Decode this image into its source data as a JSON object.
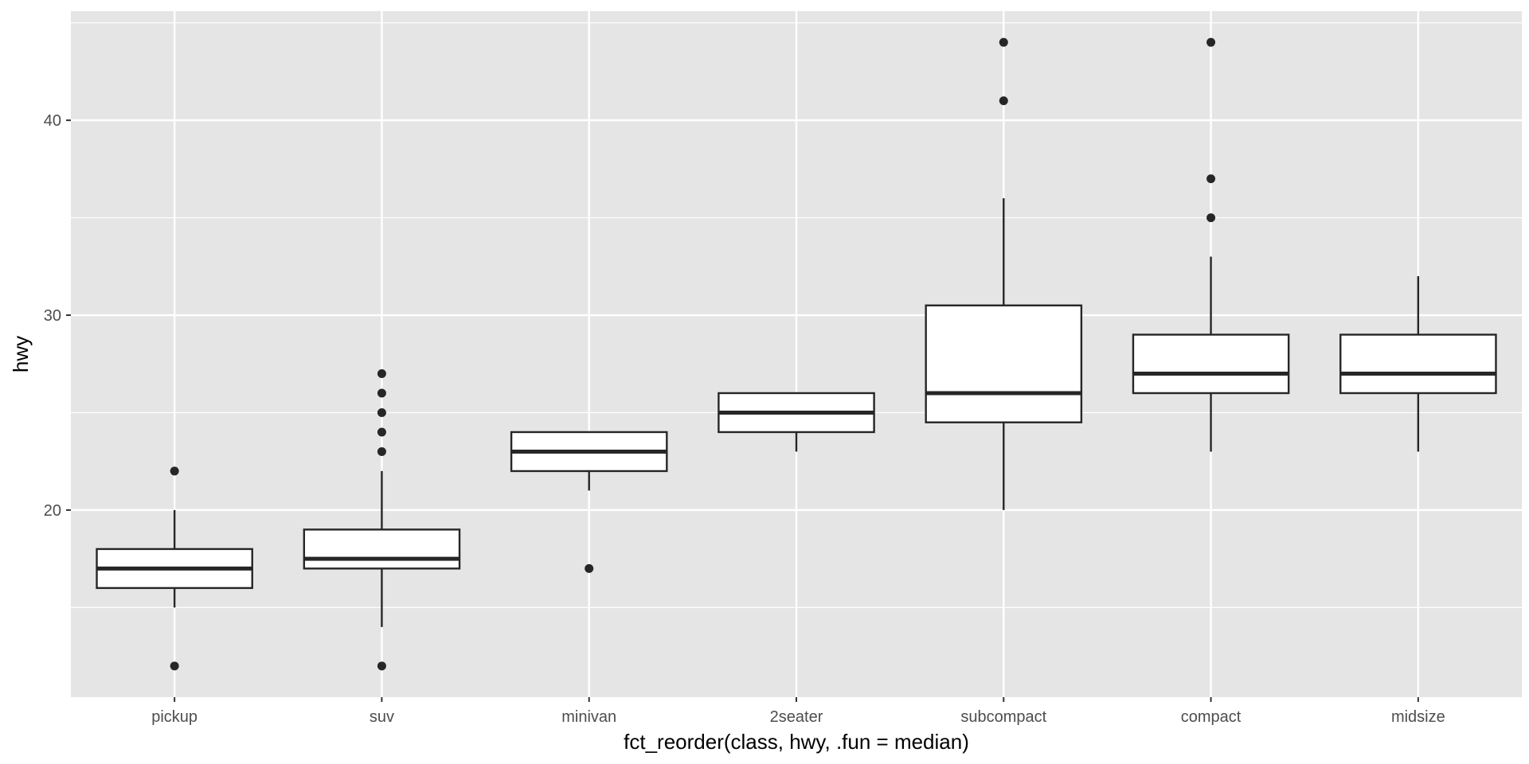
{
  "chart_data": {
    "type": "boxplot",
    "title": "",
    "xlabel": "fct_reorder(class, hwy, .fun = median)",
    "ylabel": "hwy",
    "ylim": [
      10.4,
      45.6
    ],
    "yticks": [
      20,
      30,
      40
    ],
    "grid": true,
    "colors": {
      "panel": "#e5e5e5",
      "grid": "#ffffff",
      "box_fill": "#ffffff",
      "box_stroke": "#262626",
      "outlier": "#262626",
      "tick": "#333333"
    },
    "categories": [
      "pickup",
      "suv",
      "minivan",
      "2seater",
      "subcompact",
      "compact",
      "midsize"
    ],
    "boxes": [
      {
        "name": "pickup",
        "whisker_low": 15,
        "q1": 16,
        "median": 17,
        "q3": 18,
        "whisker_high": 20,
        "outliers": [
          12,
          22
        ]
      },
      {
        "name": "suv",
        "whisker_low": 14,
        "q1": 17,
        "median": 17.5,
        "q3": 19,
        "whisker_high": 22,
        "outliers": [
          12,
          23,
          24,
          25,
          26,
          27
        ]
      },
      {
        "name": "minivan",
        "whisker_low": 21,
        "q1": 22,
        "median": 23,
        "q3": 24,
        "whisker_high": 24,
        "outliers": [
          17
        ]
      },
      {
        "name": "2seater",
        "whisker_low": 23,
        "q1": 24,
        "median": 25,
        "q3": 26,
        "whisker_high": 26,
        "outliers": []
      },
      {
        "name": "subcompact",
        "whisker_low": 20,
        "q1": 24.5,
        "median": 26,
        "q3": 30.5,
        "whisker_high": 36,
        "outliers": [
          41,
          44
        ]
      },
      {
        "name": "compact",
        "whisker_low": 23,
        "q1": 26,
        "median": 27,
        "q3": 29,
        "whisker_high": 33,
        "outliers": [
          35,
          37,
          44
        ]
      },
      {
        "name": "midsize",
        "whisker_low": 23,
        "q1": 26,
        "median": 27,
        "q3": 29,
        "whisker_high": 32,
        "outliers": []
      }
    ]
  }
}
